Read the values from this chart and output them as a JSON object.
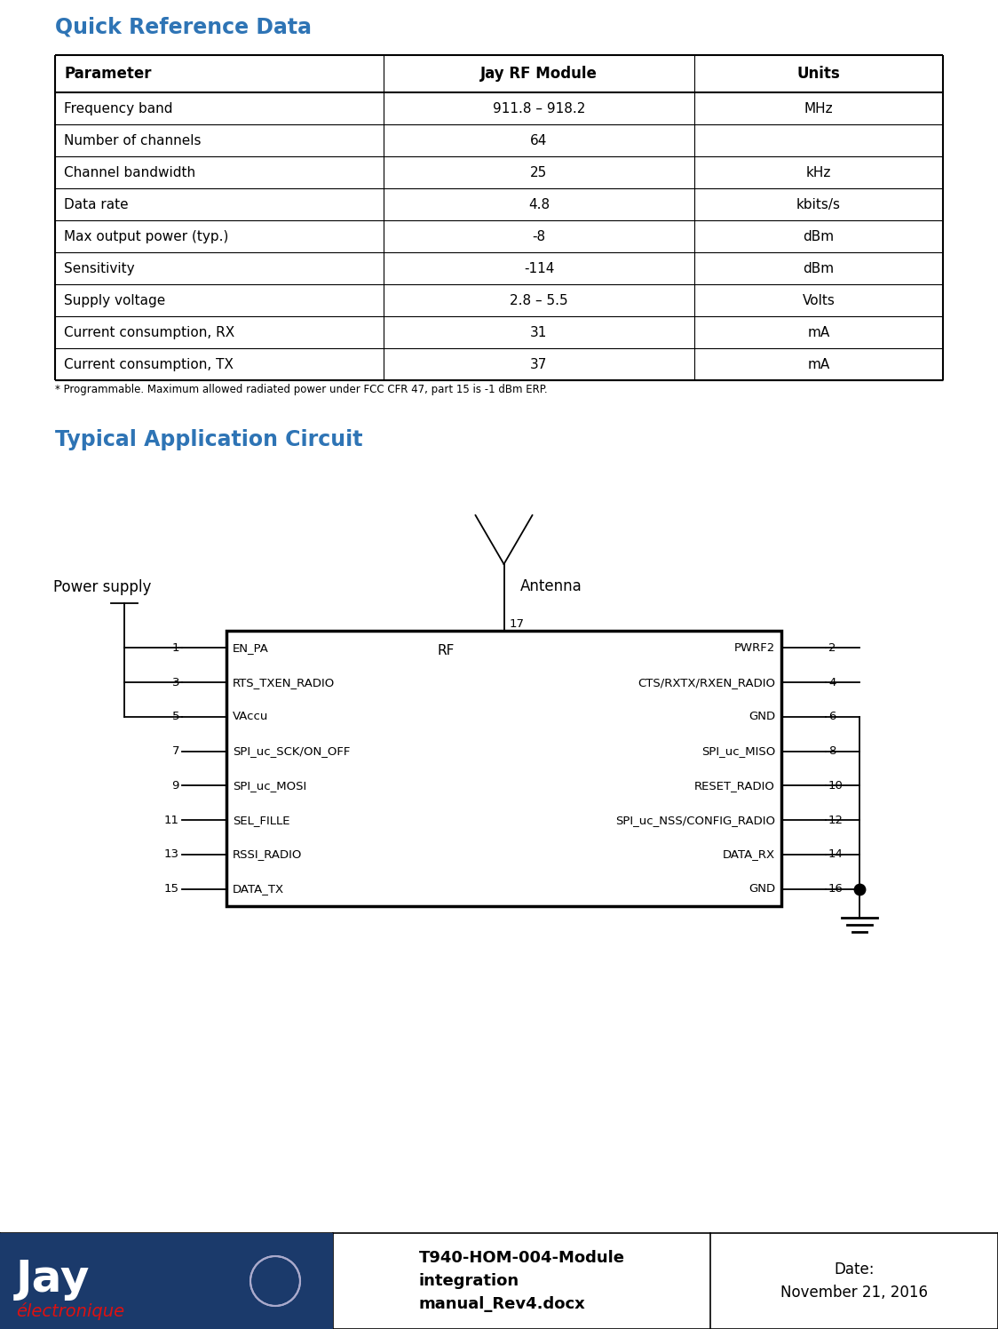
{
  "title_qrd": "Quick Reference Data",
  "title_tac": "Typical Application Circuit",
  "title_color": "#2E74B5",
  "table_headers": [
    "Parameter",
    "Jay RF Module",
    "Units"
  ],
  "table_rows": [
    [
      "Frequency band",
      "911.8 – 918.2",
      "MHz"
    ],
    [
      "Number of channels",
      "64",
      ""
    ],
    [
      "Channel bandwidth",
      "25",
      "kHz"
    ],
    [
      "Data rate",
      "4.8",
      "kbits/s"
    ],
    [
      "Max output power (typ.)",
      "-8",
      "dBm"
    ],
    [
      "Sensitivity",
      "-114",
      "dBm"
    ],
    [
      "Supply voltage",
      "2.8 – 5.5",
      "Volts"
    ],
    [
      "Current consumption, RX",
      "31",
      "mA"
    ],
    [
      "Current consumption, TX",
      "37",
      "mA"
    ]
  ],
  "footnote": "* Programmable. Maximum allowed radiated power under FCC CFR 47, part 15 is -1 dBm ERP.",
  "left_pins": [
    [
      1,
      "EN_PA"
    ],
    [
      3,
      "RTS_TXEN_RADIO"
    ],
    [
      5,
      "VAccu"
    ],
    [
      7,
      "SPI_uc_SCK/ON_OFF"
    ],
    [
      9,
      "SPI_uc_MOSI"
    ],
    [
      11,
      "SEL_FILLE"
    ],
    [
      13,
      "RSSI_RADIO"
    ],
    [
      15,
      "DATA_TX"
    ]
  ],
  "right_pins": [
    [
      2,
      "PWRF2"
    ],
    [
      4,
      "CTS/RXTX/RXEN_RADIO"
    ],
    [
      6,
      "GND"
    ],
    [
      8,
      "SPI_uc_MISO"
    ],
    [
      10,
      "RESET_RADIO"
    ],
    [
      12,
      "SPI_uc_NSS/CONFIG_RADIO"
    ],
    [
      14,
      "DATA_RX"
    ],
    [
      16,
      "GND"
    ]
  ],
  "rf_label": "RF",
  "pin17_label": "17",
  "antenna_label": "Antenna",
  "power_supply_label": "Power supply",
  "footer_doc": "T940-HOM-004-Module\nintegration\nmanual_Rev4.docx",
  "footer_date_label": "Date:",
  "footer_date": "November 21, 2016",
  "bg_color": "#ffffff",
  "table_border_color": "#000000",
  "circuit_box_color": "#000000",
  "text_color": "#000000"
}
